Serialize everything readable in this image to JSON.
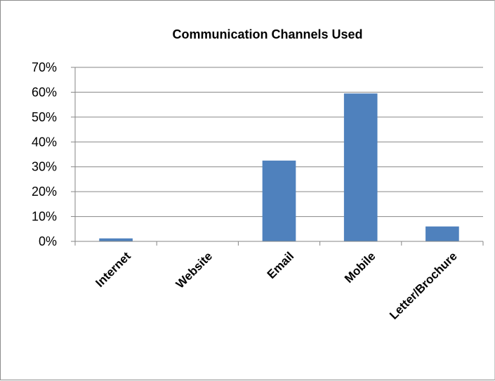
{
  "chart_data": {
    "type": "bar",
    "title": "Communication Channels Used",
    "xlabel": "",
    "ylabel": "",
    "categories": [
      "Internet",
      "Website",
      "Email",
      "Mobile",
      "Letter/Brochure"
    ],
    "values": [
      1.2,
      0,
      32.5,
      59.5,
      6
    ],
    "value_unit": "%",
    "ylim": [
      0,
      70
    ],
    "yticks": [
      "0%",
      "10%",
      "20%",
      "30%",
      "40%",
      "50%",
      "60%",
      "70%"
    ],
    "grid": true,
    "legend": "none",
    "bar_color": "#4f81bd"
  }
}
